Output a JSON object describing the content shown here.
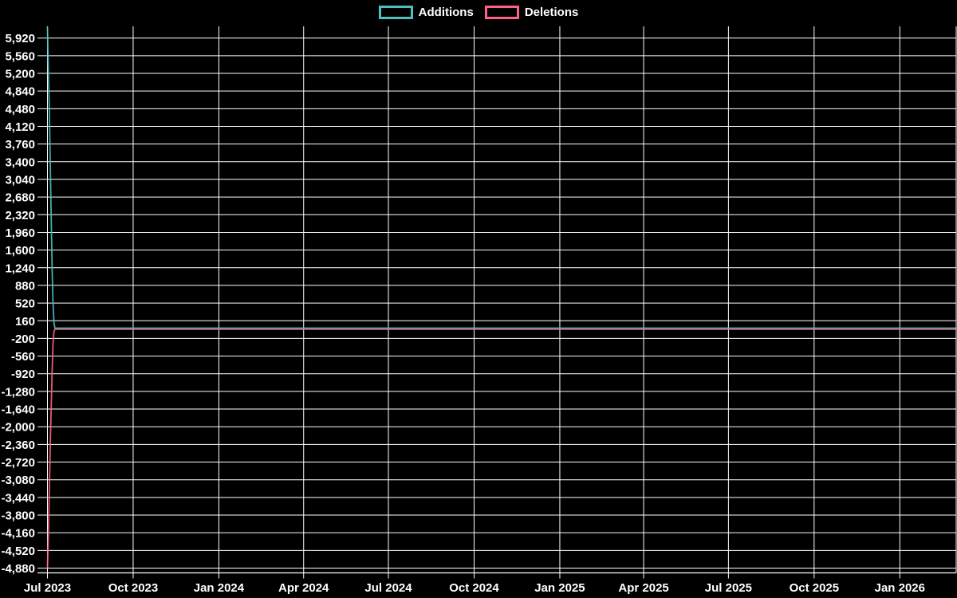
{
  "chart_data": {
    "type": "line",
    "title": "",
    "background_color": "#000000",
    "grid": {
      "show": true,
      "color": "#ffffff"
    },
    "text_color": "#ffffff",
    "legend": {
      "position": "top-center",
      "items": [
        {
          "label": "Additions",
          "color": "#4bc0c0"
        },
        {
          "label": "Deletions",
          "color": "#ff6384"
        }
      ]
    },
    "x_axis": {
      "unit": "days since first point (Jul 2023)",
      "range_days": [
        0,
        975
      ],
      "ticks": [
        {
          "label": "Jul 2023",
          "day": 0
        },
        {
          "label": "Oct 2023",
          "day": 92
        },
        {
          "label": "Jan 2024",
          "day": 184
        },
        {
          "label": "Apr 2024",
          "day": 275
        },
        {
          "label": "Jul 2024",
          "day": 366
        },
        {
          "label": "Oct 2024",
          "day": 458
        },
        {
          "label": "Jan 2025",
          "day": 550
        },
        {
          "label": "Apr 2025",
          "day": 640
        },
        {
          "label": "Jul 2025",
          "day": 731
        },
        {
          "label": "Oct 2025",
          "day": 823
        },
        {
          "label": "Jan 2026",
          "day": 915
        }
      ]
    },
    "y_axis": {
      "ylim": [
        -4980,
        6160
      ],
      "tick_step": 360,
      "ticks": [
        5920,
        5560,
        5200,
        4840,
        4480,
        4120,
        3760,
        3400,
        3040,
        2680,
        2320,
        1960,
        1600,
        1240,
        880,
        520,
        160,
        -200,
        -560,
        -920,
        -1280,
        -1640,
        -2000,
        -2360,
        -2720,
        -3080,
        -3440,
        -3800,
        -4160,
        -4520,
        -4880
      ],
      "tick_format": "thousands-comma"
    },
    "series": [
      {
        "name": "Additions",
        "color": "#4bc0c0",
        "points": [
          [
            0,
            6150
          ],
          [
            1,
            5200
          ],
          [
            2,
            4480
          ],
          [
            3,
            3400
          ],
          [
            4,
            2300
          ],
          [
            5,
            1240
          ],
          [
            6,
            520
          ],
          [
            7,
            120
          ],
          [
            8,
            10
          ],
          [
            975,
            10
          ]
        ]
      },
      {
        "name": "Deletions",
        "color": "#ff6384",
        "points": [
          [
            0,
            -4880
          ],
          [
            1,
            -4200
          ],
          [
            2,
            -3300
          ],
          [
            3,
            -2400
          ],
          [
            4,
            -1640
          ],
          [
            5,
            -900
          ],
          [
            6,
            -300
          ],
          [
            7,
            -60
          ],
          [
            8,
            -12
          ],
          [
            975,
            -12
          ]
        ]
      }
    ]
  }
}
